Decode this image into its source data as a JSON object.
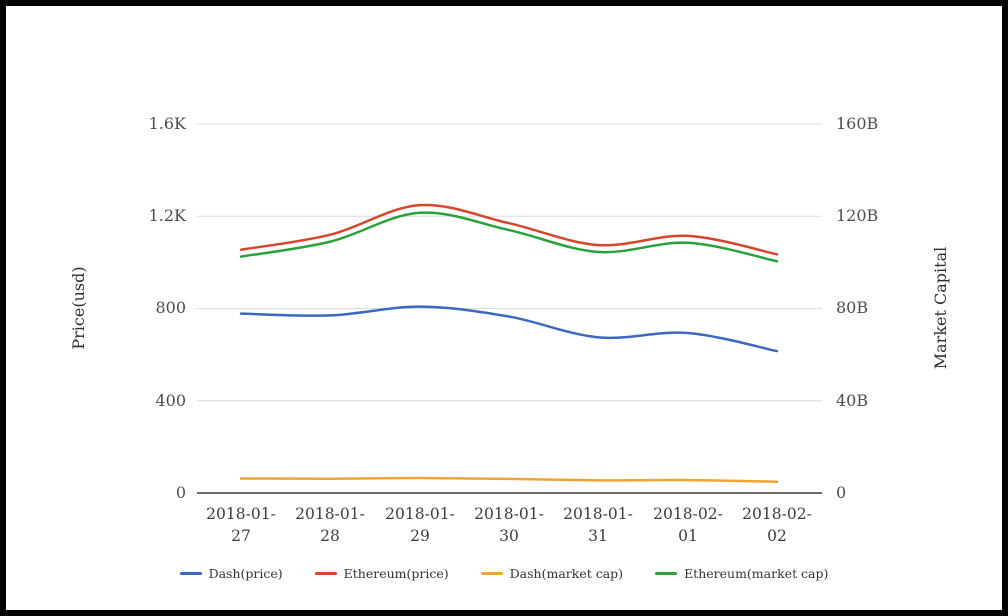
{
  "chart_data": {
    "type": "line",
    "x": [
      "2018-01-27",
      "2018-01-28",
      "2018-01-29",
      "2018-01-30",
      "2018-01-31",
      "2018-02-01",
      "2018-02-02"
    ],
    "series": [
      {
        "name": "Dash(price)",
        "axis": "left",
        "color": "#3e68c0",
        "values": [
          778,
          770,
          808,
          765,
          675,
          694,
          615
        ]
      },
      {
        "name": "Ethereum(price)",
        "axis": "left",
        "color": "#d6462c",
        "values": [
          1055,
          1120,
          1248,
          1170,
          1075,
          1115,
          1035
        ]
      },
      {
        "name": "Dash(market cap)",
        "axis": "right",
        "color": "#f0a432",
        "values": [
          6.3,
          6.2,
          6.5,
          6.1,
          5.5,
          5.6,
          4.9
        ]
      },
      {
        "name": "Ethereum(market cap)",
        "axis": "right",
        "color": "#2aa13a",
        "values": [
          102.5,
          109,
          121.5,
          114,
          104.5,
          108.5,
          100.5
        ]
      }
    ],
    "left_axis": {
      "title": "Price(usd)",
      "min": 0,
      "max": 1600,
      "ticks": [
        "0",
        "400",
        "800",
        "1.2K",
        "1.6K"
      ]
    },
    "right_axis": {
      "title": "Market Capital",
      "min": 0,
      "max": 160,
      "ticks": [
        "0",
        "40B",
        "80B",
        "120B",
        "160B"
      ]
    },
    "grid": true,
    "legend_position": "bottom",
    "colors": {
      "gridline": "#dcdcdc",
      "axis_line": "#3c3c3c",
      "background": "#ffffff",
      "border": "#000000"
    }
  }
}
